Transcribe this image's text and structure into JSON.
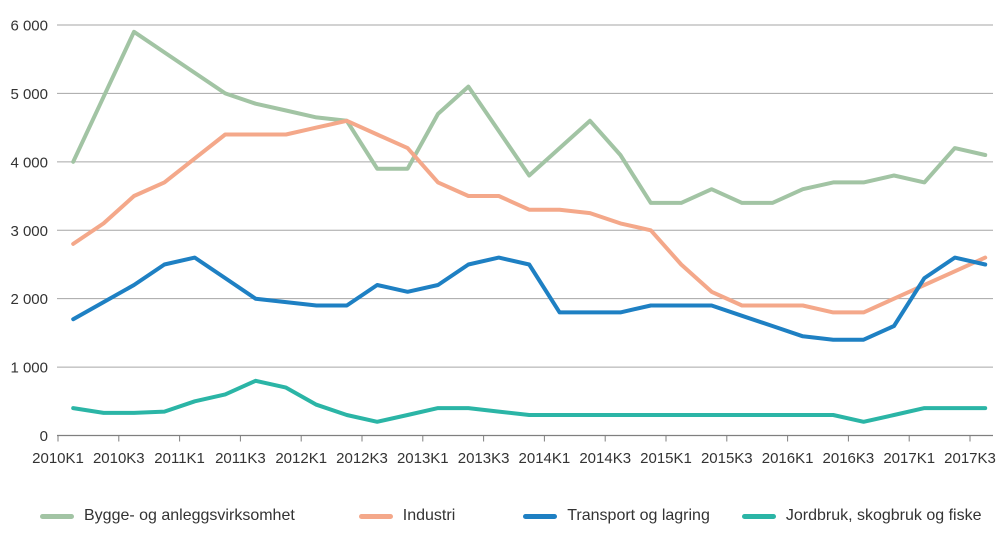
{
  "chart_data": {
    "type": "line",
    "title": "",
    "xlabel": "",
    "ylabel": "",
    "ylim": [
      0,
      6000
    ],
    "grid": "horizontal",
    "legend_position": "bottom",
    "x_categories": [
      "2010K1",
      "2010K2",
      "2010K3",
      "2010K4",
      "2011K1",
      "2011K2",
      "2011K3",
      "2011K4",
      "2012K1",
      "2012K2",
      "2012K3",
      "2012K4",
      "2013K1",
      "2013K2",
      "2013K3",
      "2013K4",
      "2014K1",
      "2014K2",
      "2014K3",
      "2014K4",
      "2015K1",
      "2015K2",
      "2015K3",
      "2015K4",
      "2016K1",
      "2016K2",
      "2016K3",
      "2016K4",
      "2017K1",
      "2017K2",
      "2017K3"
    ],
    "x_tick_labels": [
      "2010K1",
      "2010K3",
      "2011K1",
      "2011K3",
      "2012K1",
      "2012K3",
      "2013K1",
      "2013K3",
      "2014K1",
      "2014K3",
      "2015K1",
      "2015K3",
      "2016K1",
      "2016K3",
      "2017K1",
      "2017K3"
    ],
    "y_ticks": [
      0,
      1000,
      2000,
      3000,
      4000,
      5000,
      6000
    ],
    "y_tick_labels": [
      "0",
      "1 000",
      "2 000",
      "3 000",
      "4 000",
      "5 000",
      "6 000"
    ],
    "series": [
      {
        "name": "Bygge- og anleggsvirksomhet",
        "color": "#a2c4a4",
        "values": [
          4000,
          4950,
          5900,
          5600,
          5300,
          5000,
          4850,
          4750,
          4650,
          4600,
          3900,
          3900,
          4700,
          5100,
          4450,
          3800,
          4200,
          4600,
          4100,
          3400,
          3400,
          3600,
          3400,
          3400,
          3600,
          3700,
          3700,
          3800,
          3700,
          4200,
          4100
        ]
      },
      {
        "name": "Industri",
        "color": "#f4a88a",
        "values": [
          2800,
          3100,
          3500,
          3700,
          4050,
          4400,
          4400,
          4400,
          4500,
          4600,
          4400,
          4200,
          3700,
          3500,
          3500,
          3300,
          3300,
          3250,
          3100,
          3000,
          2500,
          2100,
          1900,
          1900,
          1900,
          1800,
          1800,
          2000,
          2200,
          2400,
          2600
        ]
      },
      {
        "name": "Transport og lagring",
        "color": "#1e80c3",
        "values": [
          1700,
          1950,
          2200,
          2500,
          2600,
          2300,
          2000,
          1950,
          1900,
          1900,
          2200,
          2100,
          2200,
          2500,
          2600,
          2500,
          1800,
          1800,
          1800,
          1900,
          1900,
          1900,
          1750,
          1600,
          1450,
          1400,
          1400,
          1600,
          2300,
          2600,
          2500
        ]
      },
      {
        "name": "Jordbruk, skogbruk og fiske",
        "color": "#2bb5a6",
        "values": [
          400,
          330,
          330,
          350,
          500,
          600,
          800,
          700,
          450,
          300,
          200,
          300,
          400,
          400,
          350,
          300,
          300,
          300,
          300,
          300,
          300,
          300,
          300,
          300,
          300,
          300,
          200,
          300,
          400,
          400,
          400
        ]
      }
    ]
  },
  "colors": {
    "background": "#ffffff",
    "gridline": "#a6a6a6",
    "axis": "#7f7f7f",
    "text": "#333333"
  }
}
